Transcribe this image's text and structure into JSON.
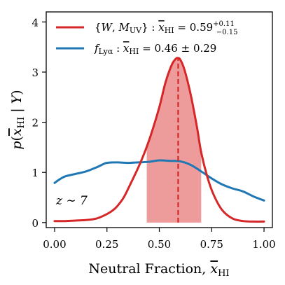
{
  "chart_data": {
    "type": "line",
    "xlabel": "Neutral Fraction, x̄HI",
    "ylabel": "p(x̄HI | Y)",
    "xlim": [
      -0.04,
      1.04
    ],
    "ylim": [
      -0.1,
      4.2
    ],
    "xticks": [
      "0.00",
      "0.25",
      "0.50",
      "0.75",
      "1.00"
    ],
    "yticks": [
      "0",
      "1",
      "2",
      "3",
      "4"
    ],
    "legend_position": "top-left",
    "annotation": "z ∼ 7",
    "median_line_x": 0.59,
    "shaded_interval": [
      0.44,
      0.7
    ],
    "series": [
      {
        "name": "{W, MUV} : x̄HI = 0.59 +0.11 −0.15",
        "color": "#d62728",
        "x": [
          0.0,
          0.05,
          0.1,
          0.15,
          0.2,
          0.25,
          0.28,
          0.3,
          0.33,
          0.36,
          0.4,
          0.43,
          0.46,
          0.5,
          0.53,
          0.56,
          0.58,
          0.59,
          0.6,
          0.62,
          0.65,
          0.68,
          0.7,
          0.73,
          0.76,
          0.8,
          0.85,
          0.9,
          0.95,
          1.0
        ],
        "y": [
          0.03,
          0.03,
          0.04,
          0.05,
          0.08,
          0.17,
          0.25,
          0.33,
          0.5,
          0.75,
          1.1,
          1.4,
          1.75,
          2.3,
          2.8,
          3.15,
          3.27,
          3.28,
          3.25,
          3.05,
          2.55,
          1.9,
          1.4,
          0.9,
          0.55,
          0.25,
          0.08,
          0.03,
          0.02,
          0.02
        ]
      },
      {
        "name": "fLyα : x̄HI = 0.46 ± 0.29",
        "color": "#1f77b4",
        "x": [
          0.0,
          0.02,
          0.05,
          0.1,
          0.15,
          0.2,
          0.23,
          0.25,
          0.3,
          0.35,
          0.4,
          0.45,
          0.5,
          0.55,
          0.6,
          0.65,
          0.7,
          0.75,
          0.8,
          0.85,
          0.9,
          0.95,
          1.0
        ],
        "y": [
          0.79,
          0.85,
          0.92,
          0.97,
          1.02,
          1.1,
          1.16,
          1.19,
          1.2,
          1.19,
          1.2,
          1.21,
          1.24,
          1.23,
          1.22,
          1.15,
          1.02,
          0.88,
          0.76,
          0.68,
          0.62,
          0.52,
          0.44
        ]
      }
    ]
  }
}
